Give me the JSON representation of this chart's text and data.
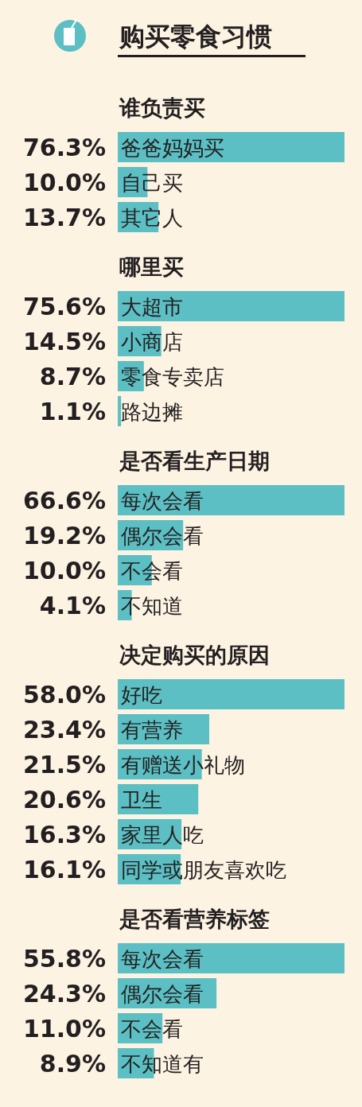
{
  "chart_data": [
    {
      "type": "bar",
      "orientation": "horizontal",
      "title": "购买零食习惯",
      "subtitle": "谁负责买",
      "color": "#5bbfc3",
      "categories": [
        "爸爸妈妈买",
        "自己买",
        "其它人"
      ],
      "values": [
        76.3,
        10.0,
        13.7
      ],
      "value_labels": [
        "76.3%",
        "10.0%",
        "13.7%"
      ]
    },
    {
      "type": "bar",
      "orientation": "horizontal",
      "title": "哪里买",
      "color": "#5bbfc3",
      "categories": [
        "大超市",
        "小商店",
        "零食专卖店",
        "路边摊"
      ],
      "values": [
        75.6,
        14.5,
        8.7,
        1.1
      ],
      "value_labels": [
        "75.6%",
        "14.5%",
        "8.7%",
        "1.1%"
      ]
    },
    {
      "type": "bar",
      "orientation": "horizontal",
      "title": "是否看生产日期",
      "color": "#5bbfc3",
      "categories": [
        "每次会看",
        "偶尔会看",
        "不会看",
        "不知道"
      ],
      "values": [
        66.6,
        19.2,
        10.0,
        4.1
      ],
      "value_labels": [
        "66.6%",
        "19.2%",
        "10.0%",
        "4.1%"
      ]
    },
    {
      "type": "bar",
      "orientation": "horizontal",
      "title": "决定购买的原因",
      "color": "#5bbfc3",
      "categories": [
        "好吃",
        "有营养",
        "有赠送小礼物",
        "卫生",
        "家里人吃",
        "同学或朋友喜欢吃"
      ],
      "values": [
        58.0,
        23.4,
        21.5,
        20.6,
        16.3,
        16.1
      ],
      "value_labels": [
        "58.0%",
        "23.4%",
        "21.5%",
        "20.6%",
        "16.3%",
        "16.1%"
      ]
    },
    {
      "type": "bar",
      "orientation": "horizontal",
      "title": "是否看营养标签",
      "color": "#5bbfc3",
      "categories": [
        "每次会看",
        "偶尔会看",
        "不会看",
        "不知道有"
      ],
      "values": [
        55.8,
        24.3,
        11.0,
        8.9
      ],
      "value_labels": [
        "55.8%",
        "24.3%",
        "11.0%",
        "8.9%"
      ]
    }
  ]
}
